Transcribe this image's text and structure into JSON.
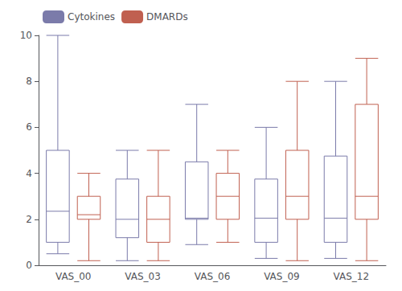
{
  "chart_data": {
    "type": "boxplot",
    "categories": [
      "VAS_00",
      "VAS_03",
      "VAS_06",
      "VAS_09",
      "VAS_12"
    ],
    "series": [
      {
        "name": "Cytokines",
        "color": "#7b7baa",
        "values": [
          {
            "whislo": 0.5,
            "q1": 1.0,
            "med": 2.35,
            "q3": 5.0,
            "whishi": 10.0
          },
          {
            "whislo": 0.2,
            "q1": 1.2,
            "med": 2.0,
            "q3": 3.75,
            "whishi": 5.0
          },
          {
            "whislo": 0.9,
            "q1": 2.0,
            "med": 2.05,
            "q3": 4.5,
            "whishi": 7.0
          },
          {
            "whislo": 0.3,
            "q1": 1.0,
            "med": 2.05,
            "q3": 3.75,
            "whishi": 6.0
          },
          {
            "whislo": 0.3,
            "q1": 1.0,
            "med": 2.05,
            "q3": 4.75,
            "whishi": 8.0
          }
        ]
      },
      {
        "name": "DMARDs",
        "color": "#c06050",
        "values": [
          {
            "whislo": 0.2,
            "q1": 2.0,
            "med": 2.2,
            "q3": 3.0,
            "whishi": 4.0
          },
          {
            "whislo": 0.2,
            "q1": 1.0,
            "med": 2.0,
            "q3": 3.0,
            "whishi": 5.0
          },
          {
            "whislo": 1.0,
            "q1": 2.0,
            "med": 3.0,
            "q3": 4.0,
            "whishi": 5.0
          },
          {
            "whislo": 0.2,
            "q1": 2.0,
            "med": 3.0,
            "q3": 5.0,
            "whishi": 8.0
          },
          {
            "whislo": 0.2,
            "q1": 2.0,
            "med": 3.0,
            "q3": 7.0,
            "whishi": 9.0
          }
        ]
      }
    ],
    "ylim": [
      0,
      10
    ],
    "yticks": [
      0,
      2,
      4,
      6,
      8,
      10
    ],
    "grid": false,
    "legend": "upper left"
  }
}
